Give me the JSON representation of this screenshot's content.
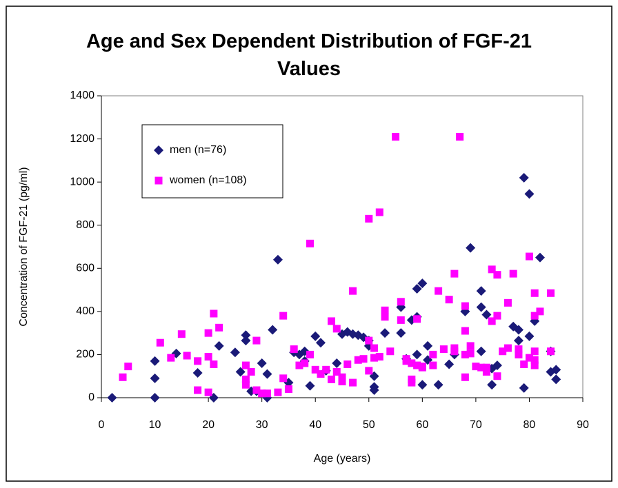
{
  "chart_data": {
    "type": "scatter",
    "title": "Age and Sex Dependent Distribution of FGF-21 Values",
    "x_label": "Age (years)",
    "y_label": "Concentration of FGF-21 (pg/ml)",
    "xlim": [
      0,
      90
    ],
    "xticks": [
      0,
      10,
      20,
      30,
      40,
      50,
      60,
      70,
      80,
      90
    ],
    "ylim": [
      0,
      1400
    ],
    "yticks": [
      0,
      200,
      400,
      600,
      800,
      1000,
      1200,
      1400
    ],
    "grid": false,
    "legend": "upper left",
    "series": [
      {
        "name": "men (n=76)",
        "color": "#1a1a78",
        "marker": "diamond",
        "x": [
          2,
          10,
          10,
          10,
          14,
          18,
          21,
          22,
          25,
          26,
          27,
          27,
          28,
          29,
          30,
          31,
          31,
          32,
          33,
          35,
          36,
          38,
          38,
          39,
          40,
          41,
          42,
          44,
          45,
          46,
          48,
          49,
          50,
          50,
          51,
          51,
          51,
          53,
          56,
          56,
          59,
          59,
          59,
          60,
          60,
          61,
          61,
          63,
          65,
          68,
          69,
          71,
          71,
          71,
          72,
          73,
          73,
          77,
          78,
          78,
          79,
          79,
          80,
          80,
          81,
          82,
          84,
          84,
          85,
          85,
          47,
          37,
          58,
          66,
          74,
          57
        ],
        "values": [
          0,
          0,
          90,
          170,
          205,
          115,
          0,
          240,
          210,
          120,
          290,
          265,
          30,
          30,
          160,
          0,
          110,
          315,
          640,
          70,
          210,
          215,
          170,
          55,
          285,
          255,
          125,
          160,
          295,
          305,
          290,
          280,
          265,
          240,
          100,
          50,
          35,
          300,
          300,
          420,
          505,
          375,
          200,
          530,
          60,
          240,
          175,
          60,
          155,
          400,
          695,
          495,
          420,
          215,
          385,
          60,
          135,
          330,
          315,
          265,
          45,
          1020,
          945,
          285,
          355,
          650,
          215,
          120,
          130,
          85,
          295,
          200,
          360,
          200,
          150,
          180
        ]
      },
      {
        "name": "women (n=108)",
        "color": "#ff00ff",
        "marker": "square",
        "x": [
          4,
          5,
          11,
          13,
          15,
          16,
          18,
          18,
          20,
          20,
          20,
          21,
          21,
          22,
          27,
          27,
          27,
          28,
          29,
          29,
          30,
          31,
          33,
          34,
          34,
          35,
          36,
          37,
          38,
          39,
          39,
          40,
          41,
          43,
          43,
          44,
          44,
          45,
          46,
          47,
          47,
          48,
          50,
          50,
          50,
          51,
          51,
          52,
          52,
          53,
          53,
          55,
          56,
          56,
          57,
          58,
          58,
          58,
          59,
          59,
          60,
          62,
          63,
          64,
          65,
          66,
          66,
          66,
          67,
          68,
          68,
          68,
          68,
          69,
          69,
          70,
          71,
          72,
          73,
          73,
          74,
          74,
          74,
          75,
          76,
          76,
          77,
          78,
          78,
          79,
          80,
          80,
          81,
          81,
          81,
          81,
          81,
          82,
          84,
          84,
          72,
          54,
          62,
          45,
          49,
          60,
          42,
          57
        ],
        "values": [
          95,
          145,
          255,
          185,
          295,
          195,
          170,
          35,
          190,
          300,
          25,
          390,
          155,
          325,
          150,
          85,
          60,
          120,
          265,
          35,
          20,
          20,
          25,
          380,
          90,
          40,
          225,
          150,
          160,
          715,
          200,
          130,
          110,
          355,
          85,
          320,
          120,
          75,
          155,
          495,
          70,
          175,
          830,
          265,
          125,
          230,
          185,
          860,
          190,
          405,
          375,
          1210,
          445,
          360,
          180,
          160,
          85,
          70,
          365,
          150,
          145,
          150,
          495,
          225,
          455,
          575,
          215,
          230,
          1210,
          425,
          310,
          200,
          95,
          240,
          205,
          145,
          140,
          140,
          595,
          355,
          570,
          380,
          100,
          215,
          440,
          230,
          575,
          225,
          200,
          155,
          655,
          185,
          485,
          380,
          215,
          175,
          150,
          400,
          485,
          215,
          120,
          215,
          200,
          95,
          180,
          140,
          130,
          170
        ]
      }
    ]
  }
}
